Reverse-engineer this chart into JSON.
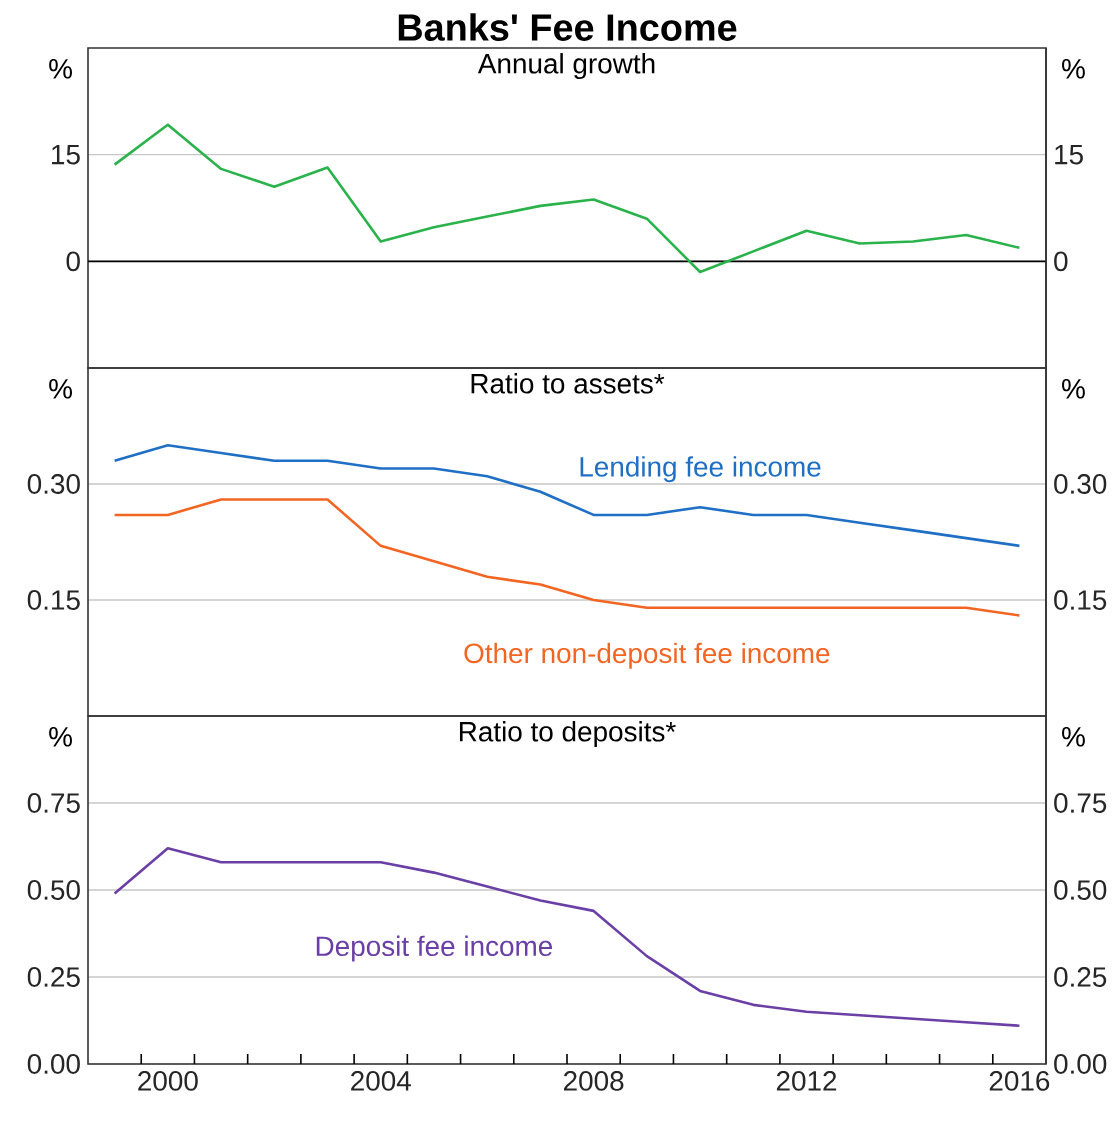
{
  "chart_data": [
    {
      "type": "line",
      "title": "Banks' Fee Income",
      "subtitle": "Annual growth",
      "ylabel": "%",
      "y2label": "%",
      "x": [
        1999,
        2000,
        2001,
        2002,
        2003,
        2004,
        2005,
        2006,
        2007,
        2008,
        2009,
        2010,
        2011,
        2012,
        2013,
        2014,
        2015,
        2016
      ],
      "xlim": [
        1998.5,
        2016.5
      ],
      "tick_labels": "y",
      "ylim": [
        -15,
        30
      ],
      "yticks": [
        0,
        15
      ],
      "y2lim": [
        -15,
        30
      ],
      "y2ticks": [
        0,
        15
      ],
      "grid": "y",
      "ref_lines": [
        {
          "axis": "y",
          "value": 0,
          "color": "#000000"
        }
      ],
      "series": [
        {
          "color": "#2ab24b",
          "values": [
            13.6,
            19.2,
            13.0,
            10.5,
            13.2,
            2.8,
            4.8,
            6.3,
            7.8,
            8.7,
            6.0,
            -1.5,
            1.4,
            4.3,
            2.5,
            2.8,
            3.7,
            1.9
          ]
        }
      ]
    },
    {
      "type": "line",
      "title": "Ratio to assets*",
      "ylabel": "%",
      "y2label": "%",
      "x": [
        1999,
        2000,
        2001,
        2002,
        2003,
        2004,
        2005,
        2006,
        2007,
        2008,
        2009,
        2010,
        2011,
        2012,
        2013,
        2014,
        2015,
        2016
      ],
      "xlim": [
        1998.5,
        2016.5
      ],
      "tick_labels": "y",
      "ylim": [
        0,
        0.45
      ],
      "yticks": [
        0.15,
        {
          "value": 0.3,
          "label": "0.30"
        }
      ],
      "y2lim": [
        0,
        0.45
      ],
      "y2ticks": [
        0.15,
        {
          "value": 0.3,
          "label": "0.30"
        }
      ],
      "grid": "y",
      "series": [
        {
          "name": "Lending fee income",
          "color": "#1f6fc5",
          "values": [
            0.33,
            0.35,
            0.34,
            0.33,
            0.33,
            0.32,
            0.32,
            0.31,
            0.29,
            0.26,
            0.26,
            0.27,
            0.26,
            0.26,
            0.25,
            0.24,
            0.23,
            0.22
          ]
        },
        {
          "name": "Other non-deposit fee income",
          "color": "#f26522",
          "values": [
            0.26,
            0.26,
            0.28,
            0.28,
            0.28,
            0.22,
            0.2,
            0.18,
            0.17,
            0.15,
            0.14,
            0.14,
            0.14,
            0.14,
            0.14,
            0.14,
            0.14,
            0.13
          ]
        }
      ]
    },
    {
      "type": "line",
      "title": "Ratio to deposits*",
      "ylabel": "%",
      "y2label": "%",
      "x": [
        1999,
        2000,
        2001,
        2002,
        2003,
        2004,
        2005,
        2006,
        2007,
        2008,
        2009,
        2010,
        2011,
        2012,
        2013,
        2014,
        2015,
        2016
      ],
      "xlim": [
        1998.5,
        2016.5
      ],
      "xticks": [
        2000,
        2004,
        2008,
        2012,
        2016,
        {
          "value": 1999.5,
          "label": null
        },
        {
          "value": 2000.5,
          "label": null
        },
        {
          "value": 2001.5,
          "label": null
        },
        {
          "value": 2002.5,
          "label": null
        },
        {
          "value": 2003.5,
          "label": null
        },
        {
          "value": 2004.5,
          "label": null
        },
        {
          "value": 2005.5,
          "label": null
        },
        {
          "value": 2006.5,
          "label": null
        },
        {
          "value": 2007.5,
          "label": null
        },
        {
          "value": 2008.5,
          "label": null
        },
        {
          "value": 2009.5,
          "label": null
        },
        {
          "value": 2010.5,
          "label": null
        },
        {
          "value": 2011.5,
          "label": null
        },
        {
          "value": 2012.5,
          "label": null
        },
        {
          "value": 2013.5,
          "label": null
        },
        {
          "value": 2014.5,
          "label": null
        },
        {
          "value": 2015.5,
          "label": null
        }
      ],
      "ylim": [
        0,
        1
      ],
      "yticks": [
        {
          "value": 0,
          "label": "0.00"
        },
        0.25,
        {
          "value": 0.5,
          "label": "0.50"
        },
        0.75
      ],
      "y2lim": [
        0,
        1
      ],
      "y2ticks": [
        {
          "value": 0,
          "label": "0.00"
        },
        0.25,
        {
          "value": 0.5,
          "label": "0.50"
        },
        0.75
      ],
      "grid": "y",
      "series": [
        {
          "name": "Deposit fee income",
          "color": "#6a3fa6",
          "values": [
            0.49,
            0.62,
            0.58,
            0.58,
            0.58,
            0.58,
            0.55,
            0.51,
            0.47,
            0.44,
            0.31,
            0.21,
            0.17,
            0.15,
            0.14,
            0.13,
            0.12,
            0.11
          ]
        }
      ]
    }
  ]
}
